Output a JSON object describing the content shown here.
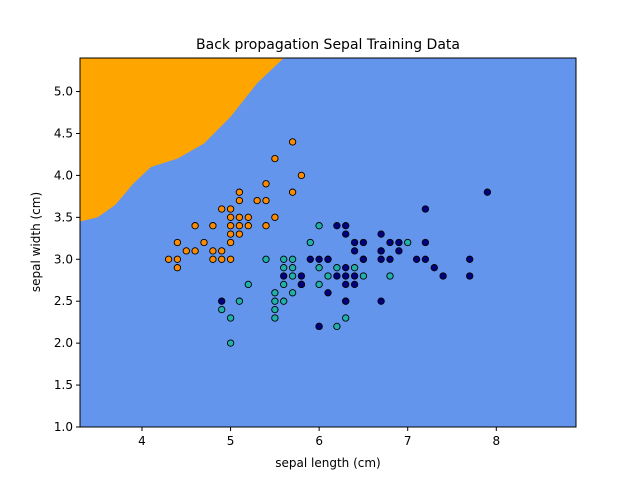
{
  "chart_data": {
    "type": "scatter",
    "title": "Back propagation Sepal Training Data",
    "xlabel": "sepal length (cm)",
    "ylabel": "sepal width (cm)",
    "xlim": [
      3.3,
      8.9
    ],
    "ylim": [
      1.0,
      5.4
    ],
    "xticks": [
      "4",
      "5",
      "6",
      "7",
      "8"
    ],
    "yticks": [
      "1.0",
      "1.5",
      "2.0",
      "2.5",
      "3.0",
      "3.5",
      "4.0",
      "4.5",
      "5.0"
    ],
    "grid": false,
    "decision_regions": {
      "background_color": "#6495ED",
      "upper_left_region_color": "#FFA500",
      "boundary": [
        [
          3.3,
          3.45
        ],
        [
          3.5,
          3.5
        ],
        [
          3.7,
          3.65
        ],
        [
          3.9,
          3.9
        ],
        [
          4.1,
          4.1
        ],
        [
          4.4,
          4.2
        ],
        [
          4.7,
          4.38
        ],
        [
          5.0,
          4.7
        ],
        [
          5.3,
          5.1
        ],
        [
          5.6,
          5.4
        ]
      ]
    },
    "series": [
      {
        "color": "#FF8C00",
        "points": [
          [
            4.3,
            3.0
          ],
          [
            4.4,
            3.2
          ],
          [
            4.4,
            3.0
          ],
          [
            4.4,
            2.9
          ],
          [
            4.5,
            3.1
          ],
          [
            4.6,
            3.4
          ],
          [
            4.6,
            3.1
          ],
          [
            4.7,
            3.2
          ],
          [
            4.8,
            3.4
          ],
          [
            4.8,
            3.1
          ],
          [
            4.8,
            3.0
          ],
          [
            4.9,
            3.6
          ],
          [
            4.9,
            3.1
          ],
          [
            4.9,
            3.0
          ],
          [
            5.0,
            3.6
          ],
          [
            5.0,
            3.5
          ],
          [
            5.0,
            3.4
          ],
          [
            5.0,
            3.3
          ],
          [
            5.0,
            3.2
          ],
          [
            5.0,
            3.0
          ],
          [
            5.1,
            3.8
          ],
          [
            5.1,
            3.7
          ],
          [
            5.1,
            3.5
          ],
          [
            5.1,
            3.4
          ],
          [
            5.1,
            3.3
          ],
          [
            5.2,
            3.5
          ],
          [
            5.2,
            3.4
          ],
          [
            5.3,
            3.7
          ],
          [
            5.4,
            3.9
          ],
          [
            5.4,
            3.7
          ],
          [
            5.4,
            3.4
          ],
          [
            5.5,
            4.2
          ],
          [
            5.5,
            3.5
          ],
          [
            5.7,
            4.4
          ],
          [
            5.7,
            3.8
          ],
          [
            5.8,
            4.0
          ]
        ]
      },
      {
        "color": "#20B2AA",
        "points": [
          [
            4.9,
            2.4
          ],
          [
            5.0,
            2.3
          ],
          [
            5.0,
            2.0
          ],
          [
            5.1,
            2.5
          ],
          [
            5.2,
            2.7
          ],
          [
            5.4,
            3.0
          ],
          [
            5.5,
            2.6
          ],
          [
            5.5,
            2.5
          ],
          [
            5.5,
            2.4
          ],
          [
            5.5,
            2.3
          ],
          [
            5.6,
            3.0
          ],
          [
            5.6,
            2.9
          ],
          [
            5.6,
            2.7
          ],
          [
            5.6,
            2.5
          ],
          [
            5.7,
            3.0
          ],
          [
            5.7,
            2.9
          ],
          [
            5.7,
            2.8
          ],
          [
            5.7,
            2.6
          ],
          [
            5.8,
            2.7
          ],
          [
            5.9,
            3.2
          ],
          [
            6.0,
            3.4
          ],
          [
            6.0,
            2.9
          ],
          [
            6.0,
            2.7
          ],
          [
            6.0,
            2.2
          ],
          [
            6.1,
            2.8
          ],
          [
            6.2,
            2.9
          ],
          [
            6.2,
            2.2
          ],
          [
            6.3,
            2.3
          ],
          [
            6.4,
            2.9
          ],
          [
            6.5,
            2.8
          ],
          [
            6.7,
            3.1
          ],
          [
            6.8,
            2.8
          ],
          [
            7.0,
            3.2
          ],
          [
            5.8,
            2.7
          ]
        ]
      },
      {
        "color": "#000080",
        "points": [
          [
            4.9,
            2.5
          ],
          [
            5.6,
            2.8
          ],
          [
            5.8,
            2.8
          ],
          [
            5.8,
            2.7
          ],
          [
            5.9,
            3.0
          ],
          [
            6.0,
            3.0
          ],
          [
            6.0,
            2.2
          ],
          [
            6.1,
            3.0
          ],
          [
            6.1,
            2.6
          ],
          [
            6.2,
            3.4
          ],
          [
            6.2,
            2.8
          ],
          [
            6.3,
            3.4
          ],
          [
            6.3,
            3.3
          ],
          [
            6.3,
            2.9
          ],
          [
            6.3,
            2.8
          ],
          [
            6.3,
            2.7
          ],
          [
            6.3,
            2.5
          ],
          [
            6.4,
            3.2
          ],
          [
            6.4,
            3.1
          ],
          [
            6.4,
            2.8
          ],
          [
            6.4,
            2.7
          ],
          [
            6.5,
            3.2
          ],
          [
            6.5,
            3.0
          ],
          [
            6.7,
            3.3
          ],
          [
            6.7,
            3.1
          ],
          [
            6.7,
            3.0
          ],
          [
            6.7,
            2.5
          ],
          [
            6.8,
            3.2
          ],
          [
            6.8,
            3.0
          ],
          [
            6.9,
            3.2
          ],
          [
            6.9,
            3.1
          ],
          [
            7.1,
            3.0
          ],
          [
            7.2,
            3.6
          ],
          [
            7.2,
            3.2
          ],
          [
            7.2,
            3.0
          ],
          [
            7.3,
            2.9
          ],
          [
            7.4,
            2.8
          ],
          [
            7.7,
            3.0
          ],
          [
            7.7,
            2.8
          ],
          [
            7.9,
            3.8
          ],
          [
            6.1,
            3.0
          ],
          [
            6.5,
            3.0
          ],
          [
            6.3,
            2.5
          ]
        ]
      }
    ]
  }
}
